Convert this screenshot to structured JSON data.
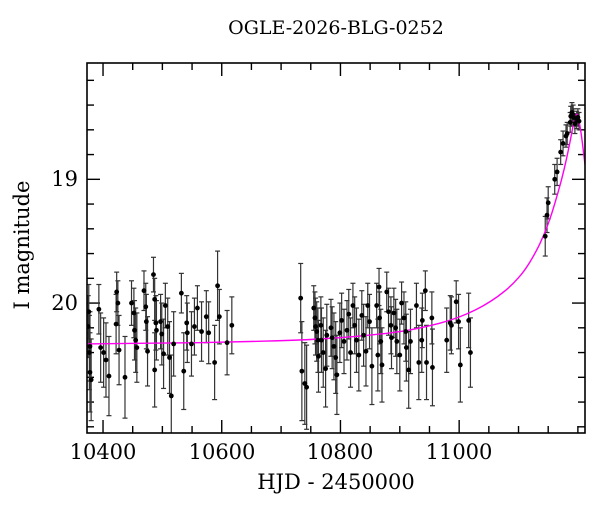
{
  "title": "OGLE-2026-BLG-0252",
  "axes": {
    "xlabel": "HJD - 2450000",
    "ylabel": "I magnitude",
    "x_tick_labels": [
      "10400",
      "10600",
      "10800",
      "11000"
    ],
    "y_tick_labels": [
      "19",
      "20"
    ]
  },
  "chart_data": {
    "type": "scatter",
    "title": "OGLE-2026-BLG-0252",
    "xlabel": "HJD - 2450000",
    "ylabel": "I magnitude",
    "xlim": [
      10373,
      11212
    ],
    "ylim": [
      18.06,
      21.05
    ],
    "y_axis_inverted": true,
    "x_major_ticks": [
      10400,
      10600,
      10800,
      11000
    ],
    "x_minor_step": 50,
    "y_major_ticks": [
      19,
      20
    ],
    "y_minor_step": 0.2,
    "grid": false,
    "legend": false,
    "point_color": "#000000",
    "errorbar_color": "#333333",
    "model_color": "#ff00f0",
    "frame_color": "#000000",
    "series": [
      {
        "name": "season-1-photometry",
        "points": [
          [
            10375,
            20.19,
            0.25
          ],
          [
            10376,
            20.07,
            0.22
          ],
          [
            10377,
            20.4,
            0.3
          ],
          [
            10378,
            20.35,
            0.28
          ],
          [
            10378,
            20.56,
            0.32
          ],
          [
            10380,
            20.62,
            0.33
          ],
          [
            10393,
            20.05,
            0.2
          ],
          [
            10396,
            20.36,
            0.28
          ],
          [
            10401,
            20.4,
            0.28
          ],
          [
            10405,
            20.46,
            0.3
          ],
          [
            10410,
            20.59,
            0.32
          ],
          [
            10422,
            20.17,
            0.24
          ],
          [
            10423,
            19.91,
            0.16
          ],
          [
            10425,
            20.0,
            0.18
          ],
          [
            10427,
            20.38,
            0.28
          ],
          [
            10437,
            20.6,
            0.33
          ],
          [
            10448,
            20.0,
            0.18
          ],
          [
            10452,
            20.08,
            0.2
          ],
          [
            10453,
            20.22,
            0.24
          ],
          [
            10455,
            20.3,
            0.26
          ],
          [
            10457,
            20.36,
            0.28
          ],
          [
            10469,
            19.9,
            0.16
          ],
          [
            10472,
            20.03,
            0.19
          ],
          [
            10473,
            20.15,
            0.22
          ],
          [
            10475,
            20.39,
            0.28
          ],
          [
            10485,
            19.77,
            0.14
          ],
          [
            10487,
            19.97,
            0.17
          ],
          [
            10487,
            20.54,
            0.3
          ],
          [
            10489,
            20.16,
            0.22
          ],
          [
            10490,
            20.22,
            0.24
          ],
          [
            10497,
            20.15,
            0.22
          ],
          [
            10499,
            20.25,
            0.25
          ],
          [
            10502,
            20.41,
            0.28
          ],
          [
            10505,
            20.02,
            0.18
          ],
          [
            10509,
            20.19,
            0.23
          ],
          [
            10512,
            20.44,
            0.29
          ],
          [
            10515,
            20.75,
            0.33
          ],
          [
            10519,
            20.33,
            0.26
          ],
          [
            10532,
            19.92,
            0.16
          ],
          [
            10536,
            20.55,
            0.31
          ],
          [
            10541,
            20.16,
            0.22
          ],
          [
            10542,
            20.24,
            0.24
          ],
          [
            10549,
            20.33,
            0.26
          ],
          [
            10554,
            20.19,
            0.23
          ],
          [
            10559,
            20.04,
            0.18
          ],
          [
            10566,
            20.23,
            0.24
          ],
          [
            10574,
            20.11,
            0.21
          ],
          [
            10578,
            20.24,
            0.25
          ],
          [
            10588,
            20.48,
            0.3
          ],
          [
            10593,
            19.86,
            0.28
          ],
          [
            10596,
            20.11,
            0.22
          ],
          [
            10609,
            20.32,
            0.26
          ],
          [
            10617,
            20.18,
            0.23
          ]
        ]
      },
      {
        "name": "season-2-photometry",
        "points": [
          [
            10733,
            19.96,
            0.28
          ],
          [
            10735,
            20.55,
            0.4
          ],
          [
            10740,
            20.65,
            0.33
          ],
          [
            10743,
            20.68,
            0.34
          ],
          [
            10755,
            20.04,
            0.18
          ],
          [
            10757,
            20.12,
            0.21
          ],
          [
            10758,
            20.19,
            0.23
          ],
          [
            10760,
            20.23,
            0.24
          ],
          [
            10762,
            20.3,
            0.26
          ],
          [
            10763,
            20.43,
            0.29
          ],
          [
            10767,
            20.18,
            0.23
          ],
          [
            10768,
            20.3,
            0.26
          ],
          [
            10771,
            20.4,
            0.28
          ],
          [
            10775,
            20.53,
            0.31
          ],
          [
            10777,
            20.26,
            0.25
          ],
          [
            10784,
            20.2,
            0.23
          ],
          [
            10786,
            20.28,
            0.25
          ],
          [
            10789,
            20.35,
            0.27
          ],
          [
            10792,
            20.44,
            0.29
          ],
          [
            10794,
            20.58,
            0.32
          ],
          [
            10799,
            20.24,
            0.24
          ],
          [
            10802,
            20.14,
            0.22
          ],
          [
            10806,
            20.31,
            0.26
          ],
          [
            10811,
            20.22,
            0.24
          ],
          [
            10814,
            20.09,
            0.2
          ],
          [
            10817,
            20.4,
            0.28
          ],
          [
            10821,
            20.02,
            0.18
          ],
          [
            10824,
            20.18,
            0.23
          ],
          [
            10827,
            20.3,
            0.26
          ],
          [
            10831,
            20.42,
            0.29
          ],
          [
            10836,
            20.1,
            0.2
          ],
          [
            10839,
            20.26,
            0.25
          ],
          [
            10843,
            20.39,
            0.28
          ],
          [
            10846,
            20.02,
            0.18
          ],
          [
            10849,
            20.15,
            0.22
          ],
          [
            10853,
            20.51,
            0.31
          ],
          [
            10861,
            20.02,
            0.18
          ],
          [
            10863,
            20.42,
            0.29
          ],
          [
            10865,
            19.87,
            0.15
          ],
          [
            10866,
            20.12,
            0.21
          ],
          [
            10868,
            20.31,
            0.26
          ],
          [
            10870,
            20.5,
            0.3
          ],
          [
            10878,
            19.91,
            0.16
          ],
          [
            10881,
            20.07,
            0.19
          ],
          [
            10885,
            20.18,
            0.23
          ],
          [
            10886,
            20.28,
            0.25
          ],
          [
            10890,
            20.08,
            0.2
          ],
          [
            10893,
            20.2,
            0.23
          ],
          [
            10895,
            20.31,
            0.26
          ],
          [
            10900,
            20.42,
            0.29
          ],
          [
            10903,
            20.0,
            0.17
          ],
          [
            10907,
            20.12,
            0.21
          ],
          [
            10910,
            20.23,
            0.24
          ],
          [
            10911,
            20.36,
            0.27
          ],
          [
            10915,
            20.54,
            0.31
          ],
          [
            10918,
            20.31,
            0.26
          ],
          [
            10928,
            20.02,
            0.18
          ],
          [
            10932,
            20.48,
            0.3
          ],
          [
            10937,
            20.3,
            0.26
          ],
          [
            10938,
            20.14,
            0.22
          ],
          [
            10943,
            19.9,
            0.16
          ],
          [
            10945,
            20.48,
            0.3
          ],
          [
            10954,
            20.12,
            0.21
          ],
          [
            10955,
            20.52,
            0.31
          ],
          [
            10979,
            20.3,
            0.26
          ],
          [
            10985,
            20.16,
            0.22
          ],
          [
            10987,
            20.18,
            0.23
          ],
          [
            10995,
            19.99,
            0.17
          ],
          [
            10999,
            20.15,
            0.22
          ],
          [
            11002,
            20.5,
            0.3
          ],
          [
            11016,
            20.14,
            0.22
          ],
          [
            11019,
            20.4,
            0.28
          ]
        ]
      },
      {
        "name": "event-rise-photometry",
        "points": [
          [
            11145,
            19.46,
            0.16
          ],
          [
            11148,
            19.29,
            0.14
          ],
          [
            11150,
            19.19,
            0.13
          ],
          [
            11161,
            19.0,
            0.12
          ],
          [
            11165,
            18.94,
            0.11
          ],
          [
            11171,
            18.78,
            0.1
          ],
          [
            11175,
            18.71,
            0.1
          ],
          [
            11180,
            18.65,
            0.09
          ],
          [
            11182,
            18.63,
            0.09
          ],
          [
            11187,
            18.54,
            0.08
          ],
          [
            11188,
            18.49,
            0.08
          ],
          [
            11190,
            18.46,
            0.08
          ],
          [
            11192,
            18.48,
            0.08
          ],
          [
            11193,
            18.5,
            0.07
          ],
          [
            11195,
            18.55,
            0.08
          ],
          [
            11198,
            18.52,
            0.07
          ],
          [
            11200,
            18.5,
            0.07
          ],
          [
            11202,
            18.53,
            0.07
          ]
        ]
      }
    ],
    "model_curve": [
      [
        10373,
        20.33
      ],
      [
        10500,
        20.325
      ],
      [
        10620,
        20.315
      ],
      [
        10730,
        20.3
      ],
      [
        10800,
        20.28
      ],
      [
        10860,
        20.255
      ],
      [
        10910,
        20.225
      ],
      [
        10950,
        20.185
      ],
      [
        10985,
        20.14
      ],
      [
        11015,
        20.085
      ],
      [
        11040,
        20.025
      ],
      [
        11065,
        19.95
      ],
      [
        11090,
        19.85
      ],
      [
        11110,
        19.74
      ],
      [
        11128,
        19.6
      ],
      [
        11143,
        19.45
      ],
      [
        11156,
        19.28
      ],
      [
        11167,
        19.1
      ],
      [
        11177,
        18.92
      ],
      [
        11185,
        18.74
      ],
      [
        11191,
        18.59
      ],
      [
        11195,
        18.5
      ],
      [
        11197,
        18.47
      ],
      [
        11199,
        18.48
      ],
      [
        11202,
        18.53
      ],
      [
        11206,
        18.64
      ],
      [
        11209,
        18.76
      ],
      [
        11212,
        18.88
      ]
    ]
  }
}
